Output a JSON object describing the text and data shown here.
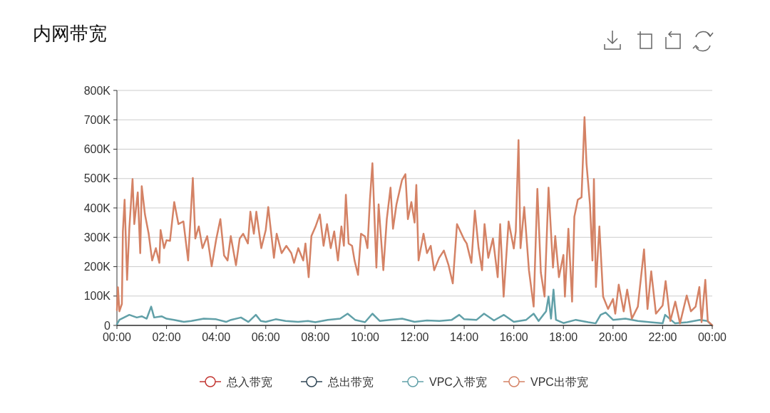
{
  "chart_data": {
    "type": "line",
    "title": "内网带宽",
    "xlim": [
      0,
      24
    ],
    "xticks": [
      {
        "value": 0,
        "label": "00:00"
      },
      {
        "value": 2,
        "label": "02:00"
      },
      {
        "value": 4,
        "label": "04:00"
      },
      {
        "value": 6,
        "label": "06:00"
      },
      {
        "value": 8,
        "label": "08:00"
      },
      {
        "value": 10,
        "label": "10:00"
      },
      {
        "value": 12,
        "label": "12:00"
      },
      {
        "value": 14,
        "label": "14:00"
      },
      {
        "value": 16,
        "label": "16:00"
      },
      {
        "value": 18,
        "label": "18:00"
      },
      {
        "value": 20,
        "label": "20:00"
      },
      {
        "value": 22,
        "label": "22:00"
      },
      {
        "value": 24,
        "label": "00:00"
      }
    ],
    "ylim": [
      0,
      800000
    ],
    "yticks": [
      0,
      {
        "value": 100000,
        "label": "100K"
      },
      {
        "value": 200000,
        "label": "200K"
      },
      {
        "value": 300000,
        "label": "300K"
      },
      {
        "value": 400000,
        "label": "400K"
      },
      {
        "value": 500000,
        "label": "500K"
      },
      {
        "value": 600000,
        "label": "600K"
      },
      {
        "value": 700000,
        "label": "700K"
      },
      {
        "value": 800000,
        "label": "800K"
      }
    ],
    "grid": "y",
    "legend": "bottom",
    "line_style": "solid",
    "series": [
      {
        "name": "总入带宽",
        "color": "#c23531"
      },
      {
        "name": "总出带宽",
        "color": "#2f4554"
      },
      {
        "name": "VPC入带宽",
        "color": "#61a0a8",
        "x": [
          0,
          0.1,
          0.5,
          0.8,
          1.0,
          1.2,
          1.38,
          1.5,
          1.8,
          2.0,
          2.3,
          2.7,
          3.0,
          3.5,
          4.0,
          4.4,
          4.6,
          5.0,
          5.3,
          5.6,
          5.8,
          6.0,
          6.4,
          6.8,
          7.3,
          7.7,
          8.0,
          8.5,
          9.0,
          9.3,
          9.6,
          10.0,
          10.3,
          10.6,
          11.0,
          11.5,
          12.0,
          12.5,
          13.0,
          13.5,
          13.8,
          14.0,
          14.5,
          14.8,
          15.2,
          15.6,
          16.0,
          16.5,
          16.8,
          17.0,
          17.3,
          17.4,
          17.5,
          17.6,
          17.7,
          18.0,
          18.5,
          19.0,
          19.3,
          19.5,
          19.7,
          20.0,
          20.5,
          21.0,
          21.5,
          22.0,
          22.1,
          22.5,
          23.0,
          23.5,
          23.8,
          24.0
        ],
        "values": [
          4000,
          19000,
          36000,
          27000,
          31000,
          23000,
          64000,
          27000,
          31000,
          23000,
          19000,
          12000,
          15000,
          23000,
          21000,
          12000,
          19000,
          27000,
          12000,
          36000,
          15000,
          12000,
          21000,
          15000,
          12000,
          15000,
          11000,
          19000,
          23000,
          40000,
          19000,
          11000,
          40000,
          15000,
          19000,
          23000,
          12000,
          17000,
          15000,
          19000,
          36000,
          21000,
          19000,
          40000,
          17000,
          36000,
          12000,
          19000,
          40000,
          15000,
          48000,
          98000,
          23000,
          122000,
          19000,
          8000,
          19000,
          11000,
          7000,
          36000,
          44000,
          19000,
          23000,
          15000,
          11000,
          7000,
          36000,
          7000,
          11000,
          19000,
          15000,
          0
        ]
      },
      {
        "name": "VPC出带宽",
        "color": "#d48265",
        "x": [
          0,
          0.04,
          0.1,
          0.2,
          0.24,
          0.31,
          0.41,
          0.5,
          0.63,
          0.7,
          0.84,
          0.94,
          1.0,
          1.13,
          1.28,
          1.42,
          1.57,
          1.71,
          1.76,
          1.9,
          2.0,
          2.14,
          2.31,
          2.48,
          2.68,
          2.87,
          3.06,
          3.16,
          3.3,
          3.45,
          3.64,
          3.82,
          4.0,
          4.17,
          4.32,
          4.46,
          4.59,
          4.8,
          4.95,
          5.09,
          5.28,
          5.38,
          5.52,
          5.62,
          5.82,
          6.0,
          6.1,
          6.33,
          6.44,
          6.64,
          6.83,
          7.03,
          7.14,
          7.31,
          7.51,
          7.6,
          7.73,
          7.84,
          8.0,
          8.18,
          8.33,
          8.47,
          8.62,
          8.76,
          8.91,
          9.05,
          9.15,
          9.23,
          9.34,
          9.48,
          9.58,
          9.72,
          9.84,
          10.0,
          10.1,
          10.2,
          10.3,
          10.46,
          10.55,
          10.74,
          10.88,
          11.03,
          11.13,
          11.27,
          11.49,
          11.63,
          11.73,
          11.87,
          12.0,
          12.07,
          12.16,
          12.36,
          12.5,
          12.65,
          12.79,
          12.99,
          13.18,
          13.37,
          13.54,
          13.71,
          14.0,
          14.1,
          14.29,
          14.43,
          14.58,
          14.72,
          14.82,
          14.97,
          15.16,
          15.35,
          15.45,
          15.59,
          15.79,
          16.0,
          16.08,
          16.19,
          16.27,
          16.42,
          16.61,
          16.8,
          16.95,
          17.09,
          17.24,
          17.4,
          17.58,
          17.67,
          17.82,
          18.0,
          18.06,
          18.2,
          18.35,
          18.44,
          18.58,
          18.73,
          18.85,
          18.93,
          19.07,
          19.17,
          19.23,
          19.31,
          19.45,
          19.6,
          19.8,
          20.0,
          20.09,
          20.23,
          20.43,
          20.57,
          20.76,
          21.0,
          21.25,
          21.39,
          21.54,
          21.73,
          22.0,
          22.12,
          22.31,
          22.51,
          22.7,
          22.97,
          23.14,
          23.33,
          23.48,
          23.57,
          23.72,
          23.82,
          24.0
        ],
        "values": [
          52000,
          130000,
          48000,
          73000,
          320000,
          428000,
          155000,
          330000,
          498000,
          345000,
          453000,
          246000,
          474000,
          378000,
          312000,
          221000,
          263000,
          213000,
          325000,
          263000,
          290000,
          288000,
          420000,
          345000,
          354000,
          221000,
          502000,
          296000,
          337000,
          263000,
          304000,
          201000,
          292000,
          362000,
          238000,
          221000,
          304000,
          205000,
          296000,
          312000,
          279000,
          387000,
          312000,
          387000,
          263000,
          325000,
          403000,
          230000,
          312000,
          246000,
          271000,
          246000,
          213000,
          263000,
          221000,
          279000,
          164000,
          304000,
          335000,
          378000,
          271000,
          345000,
          263000,
          320000,
          221000,
          337000,
          271000,
          445000,
          279000,
          271000,
          221000,
          172000,
          312000,
          303000,
          263000,
          428000,
          552000,
          197000,
          412000,
          188000,
          362000,
          469000,
          329000,
          412000,
          494000,
          515000,
          362000,
          420000,
          350000,
          478000,
          221000,
          312000,
          246000,
          271000,
          188000,
          230000,
          255000,
          205000,
          143000,
          345000,
          292000,
          279000,
          213000,
          391000,
          263000,
          188000,
          345000,
          230000,
          296000,
          164000,
          345000,
          98000,
          354000,
          262000,
          321000,
          631000,
          263000,
          403000,
          188000,
          64000,
          465000,
          180000,
          98000,
          469000,
          197000,
          304000,
          164000,
          240000,
          98000,
          329000,
          81000,
          370000,
          428000,
          436000,
          709000,
          552000,
          412000,
          221000,
          498000,
          131000,
          337000,
          98000,
          56000,
          90000,
          40000,
          139000,
          48000,
          122000,
          23000,
          64000,
          259000,
          56000,
          184000,
          40000,
          68000,
          151000,
          15000,
          81000,
          7000,
          102000,
          48000,
          64000,
          131000,
          11000,
          155000,
          15000,
          0
        ]
      }
    ]
  }
}
